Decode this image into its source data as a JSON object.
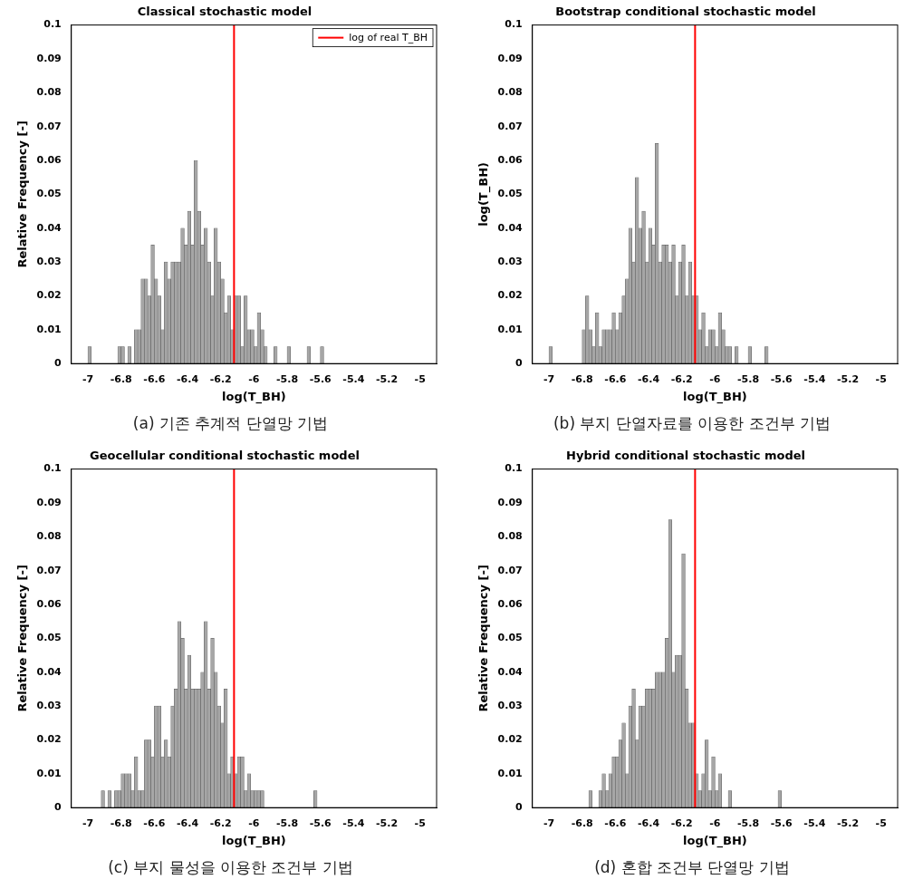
{
  "chart_data": [
    {
      "type": "histogram",
      "title": "Classical stochastic model",
      "caption": "(a) 기존 추계적 단열망 기법",
      "x_label": "log(T_BH)",
      "y_label": "Relative Frequency [-]",
      "bins": [
        -7,
        -6.98,
        -6.96,
        -6.94,
        -6.92,
        -6.9,
        -6.88,
        -6.86,
        -6.84,
        -6.82,
        -6.8,
        -6.78,
        -6.76,
        -6.74,
        -6.72,
        -6.7,
        -6.68,
        -6.66,
        -6.64,
        -6.62,
        -6.6,
        -6.58,
        -6.56,
        -6.54,
        -6.52,
        -6.5,
        -6.48,
        -6.46,
        -6.44,
        -6.42,
        -6.4,
        -6.38,
        -6.36,
        -6.34,
        -6.32,
        -6.3,
        -6.28,
        -6.26,
        -6.24,
        -6.22,
        -6.2,
        -6.18,
        -6.16,
        -6.14,
        -6.12,
        -6.1,
        -6.08,
        -6.06,
        -6.04,
        -6.02,
        -6,
        -5.98,
        -5.96,
        -5.94,
        -5.92,
        -5.9,
        -5.88,
        -5.86,
        -5.84,
        -5.82,
        -5.8,
        -5.78,
        -5.76,
        -5.74,
        -5.72,
        -5.7,
        -5.68,
        -5.66,
        -5.64,
        -5.62,
        -5.6,
        -5.58,
        -5.56,
        -5.54,
        -5.52,
        -5.5,
        -5.48,
        -5.46,
        -5.44,
        -5.42,
        -5.4,
        -5.38,
        -5.36,
        -5.34,
        -5.32,
        -5.3,
        -5.28,
        -5.26,
        -5.24,
        -5.22,
        -5.2,
        -5.18,
        -5.16,
        -5.14,
        -5.12,
        -5.1,
        -5.08,
        -5.06,
        -5.04,
        -5.02,
        -5
      ],
      "values": [
        0.005,
        0,
        0,
        0,
        0,
        0,
        0,
        0,
        0,
        0.005,
        0.005,
        0,
        0.005,
        0,
        0.01,
        0.01,
        0.025,
        0.025,
        0.02,
        0.035,
        0.025,
        0.02,
        0.01,
        0.03,
        0.025,
        0.03,
        0.03,
        0.03,
        0.04,
        0.035,
        0.045,
        0.035,
        0.06,
        0.045,
        0.035,
        0.04,
        0.03,
        0.02,
        0.04,
        0.03,
        0.025,
        0.015,
        0.02,
        0.01,
        0.02,
        0.02,
        0.005,
        0.02,
        0.01,
        0.01,
        0.005,
        0.015,
        0.01,
        0.005,
        0,
        0,
        0.005,
        0,
        0,
        0,
        0.005,
        0,
        0,
        0,
        0,
        0,
        0.005,
        0,
        0,
        0,
        0.005,
        0,
        0,
        0,
        0,
        0,
        0,
        0,
        0,
        0,
        0,
        0,
        0,
        0,
        0,
        0,
        0,
        0,
        0,
        0,
        0,
        0,
        0,
        0,
        0,
        0,
        0,
        0,
        0,
        0
      ],
      "color": "#a6a6a6",
      "xlim": [
        -7,
        -5
      ],
      "xticks": [
        -7,
        -6.8,
        -6.6,
        -6.4,
        -6.2,
        -6,
        -5.8,
        -5.6,
        -5.4,
        -5.2,
        -5
      ],
      "ylim": [
        0,
        0.1
      ],
      "yticks": [
        0,
        0.01,
        0.02,
        0.03,
        0.04,
        0.05,
        0.06,
        0.07,
        0.08,
        0.09,
        0.1
      ],
      "grid": false,
      "legend": "upper right",
      "reference_line": {
        "name": "log of real T_BH",
        "x": -6.12,
        "color": "#ff0000"
      }
    },
    {
      "type": "histogram",
      "title": "Bootstrap conditional stochastic model",
      "caption": "(b) 부지 단열자료를 이용한 조건부 기법",
      "x_label": "log(T_BH)",
      "y_label": "log(T_BH)",
      "bins": [
        -7,
        -6.98,
        -6.96,
        -6.94,
        -6.92,
        -6.9,
        -6.88,
        -6.86,
        -6.84,
        -6.82,
        -6.8,
        -6.78,
        -6.76,
        -6.74,
        -6.72,
        -6.7,
        -6.68,
        -6.66,
        -6.64,
        -6.62,
        -6.6,
        -6.58,
        -6.56,
        -6.54,
        -6.52,
        -6.5,
        -6.48,
        -6.46,
        -6.44,
        -6.42,
        -6.4,
        -6.38,
        -6.36,
        -6.34,
        -6.32,
        -6.3,
        -6.28,
        -6.26,
        -6.24,
        -6.22,
        -6.2,
        -6.18,
        -6.16,
        -6.14,
        -6.12,
        -6.1,
        -6.08,
        -6.06,
        -6.04,
        -6.02,
        -6,
        -5.98,
        -5.96,
        -5.94,
        -5.92,
        -5.9,
        -5.88,
        -5.86,
        -5.84,
        -5.82,
        -5.8,
        -5.78,
        -5.76,
        -5.74,
        -5.72,
        -5.7,
        -5.68,
        -5.66,
        -5.64,
        -5.62,
        -5.6,
        -5.58,
        -5.56,
        -5.54,
        -5.52,
        -5.5,
        -5.48,
        -5.46,
        -5.44,
        -5.42,
        -5.4,
        -5.38,
        -5.36,
        -5.34,
        -5.32,
        -5.3,
        -5.28,
        -5.26,
        -5.24,
        -5.22,
        -5.2,
        -5.18,
        -5.16,
        -5.14,
        -5.12,
        -5.1,
        -5.08,
        -5.06,
        -5.04,
        -5.02,
        -5
      ],
      "values": [
        0.005,
        0,
        0,
        0,
        0,
        0,
        0,
        0,
        0,
        0,
        0.01,
        0.02,
        0.01,
        0.005,
        0.015,
        0.005,
        0.01,
        0.01,
        0.01,
        0.015,
        0.01,
        0.015,
        0.02,
        0.025,
        0.04,
        0.03,
        0.055,
        0.04,
        0.045,
        0.03,
        0.04,
        0.035,
        0.065,
        0.03,
        0.035,
        0.035,
        0.03,
        0.035,
        0.02,
        0.03,
        0.035,
        0.02,
        0.03,
        0.02,
        0.02,
        0.01,
        0.015,
        0.005,
        0.01,
        0.01,
        0.005,
        0.015,
        0.01,
        0.005,
        0.005,
        0,
        0.005,
        0,
        0,
        0,
        0.005,
        0,
        0,
        0,
        0,
        0.005,
        0,
        0,
        0,
        0,
        0,
        0,
        0,
        0,
        0,
        0,
        0,
        0,
        0,
        0,
        0,
        0,
        0,
        0,
        0,
        0,
        0,
        0,
        0,
        0,
        0,
        0,
        0,
        0,
        0,
        0,
        0,
        0,
        0,
        0
      ],
      "color": "#a6a6a6",
      "xlim": [
        -7,
        -5
      ],
      "xticks": [
        -7,
        -6.8,
        -6.6,
        -6.4,
        -6.2,
        -6,
        -5.8,
        -5.6,
        -5.4,
        -5.2,
        -5
      ],
      "ylim": [
        0,
        0.1
      ],
      "yticks": [
        0,
        0.01,
        0.02,
        0.03,
        0.04,
        0.05,
        0.06,
        0.07,
        0.08,
        0.09,
        0.1
      ],
      "grid": false,
      "legend": false,
      "reference_line": {
        "name": "log of real T_BH",
        "x": -6.12,
        "color": "#ff0000"
      }
    },
    {
      "type": "histogram",
      "title": "Geocellular conditional stochastic model",
      "caption": "(c) 부지 물성을 이용한 조건부 기법",
      "x_label": "log(T_BH)",
      "y_label": "Relative Frequency [-]",
      "bins": [
        -7,
        -6.98,
        -6.96,
        -6.94,
        -6.92,
        -6.9,
        -6.88,
        -6.86,
        -6.84,
        -6.82,
        -6.8,
        -6.78,
        -6.76,
        -6.74,
        -6.72,
        -6.7,
        -6.68,
        -6.66,
        -6.64,
        -6.62,
        -6.6,
        -6.58,
        -6.56,
        -6.54,
        -6.52,
        -6.5,
        -6.48,
        -6.46,
        -6.44,
        -6.42,
        -6.4,
        -6.38,
        -6.36,
        -6.34,
        -6.32,
        -6.3,
        -6.28,
        -6.26,
        -6.24,
        -6.22,
        -6.2,
        -6.18,
        -6.16,
        -6.14,
        -6.12,
        -6.1,
        -6.08,
        -6.06,
        -6.04,
        -6.02,
        -6,
        -5.98,
        -5.96,
        -5.94,
        -5.92,
        -5.9,
        -5.88,
        -5.86,
        -5.84,
        -5.82,
        -5.8,
        -5.78,
        -5.76,
        -5.74,
        -5.72,
        -5.7,
        -5.68,
        -5.66,
        -5.64,
        -5.62,
        -5.6,
        -5.58,
        -5.56,
        -5.54,
        -5.52,
        -5.5,
        -5.48,
        -5.46,
        -5.44,
        -5.42,
        -5.4,
        -5.38,
        -5.36,
        -5.34,
        -5.32,
        -5.3,
        -5.28,
        -5.26,
        -5.24,
        -5.22,
        -5.2,
        -5.18,
        -5.16,
        -5.14,
        -5.12,
        -5.1,
        -5.08,
        -5.06,
        -5.04,
        -5.02,
        -5
      ],
      "values": [
        0,
        0,
        0,
        0,
        0.005,
        0,
        0.005,
        0,
        0.005,
        0.005,
        0.01,
        0.01,
        0.01,
        0.005,
        0.015,
        0.005,
        0.005,
        0.02,
        0.02,
        0.015,
        0.03,
        0.03,
        0.015,
        0.02,
        0.015,
        0.03,
        0.035,
        0.055,
        0.05,
        0.035,
        0.045,
        0.035,
        0.035,
        0.035,
        0.04,
        0.055,
        0.035,
        0.05,
        0.04,
        0.03,
        0.025,
        0.035,
        0.01,
        0.015,
        0.01,
        0.015,
        0.015,
        0.005,
        0.01,
        0.005,
        0.005,
        0.005,
        0.005,
        0,
        0,
        0,
        0,
        0,
        0,
        0,
        0,
        0,
        0,
        0,
        0,
        0,
        0,
        0,
        0.005,
        0,
        0,
        0,
        0,
        0,
        0,
        0,
        0,
        0,
        0,
        0,
        0,
        0,
        0,
        0,
        0,
        0,
        0,
        0,
        0,
        0,
        0,
        0,
        0,
        0,
        0,
        0,
        0,
        0,
        0,
        0
      ],
      "color": "#a6a6a6",
      "xlim": [
        -7,
        -5
      ],
      "xticks": [
        -7,
        -6.8,
        -6.6,
        -6.4,
        -6.2,
        -6,
        -5.8,
        -5.6,
        -5.4,
        -5.2,
        -5
      ],
      "ylim": [
        0,
        0.1
      ],
      "yticks": [
        0,
        0.01,
        0.02,
        0.03,
        0.04,
        0.05,
        0.06,
        0.07,
        0.08,
        0.09,
        0.1
      ],
      "grid": false,
      "legend": false,
      "reference_line": {
        "name": "log of real T_BH",
        "x": -6.12,
        "color": "#ff0000"
      }
    },
    {
      "type": "histogram",
      "title": "Hybrid conditional stochastic model",
      "caption": "(d) 혼합 조건부 단열망 기법",
      "x_label": "log(T_BH)",
      "y_label": "Relative Frequency [-]",
      "bins": [
        -7,
        -6.98,
        -6.96,
        -6.94,
        -6.92,
        -6.9,
        -6.88,
        -6.86,
        -6.84,
        -6.82,
        -6.8,
        -6.78,
        -6.76,
        -6.74,
        -6.72,
        -6.7,
        -6.68,
        -6.66,
        -6.64,
        -6.62,
        -6.6,
        -6.58,
        -6.56,
        -6.54,
        -6.52,
        -6.5,
        -6.48,
        -6.46,
        -6.44,
        -6.42,
        -6.4,
        -6.38,
        -6.36,
        -6.34,
        -6.32,
        -6.3,
        -6.28,
        -6.26,
        -6.24,
        -6.22,
        -6.2,
        -6.18,
        -6.16,
        -6.14,
        -6.12,
        -6.1,
        -6.08,
        -6.06,
        -6.04,
        -6.02,
        -6,
        -5.98,
        -5.96,
        -5.94,
        -5.92,
        -5.9,
        -5.88,
        -5.86,
        -5.84,
        -5.82,
        -5.8,
        -5.78,
        -5.76,
        -5.74,
        -5.72,
        -5.7,
        -5.68,
        -5.66,
        -5.64,
        -5.62,
        -5.6,
        -5.58,
        -5.56,
        -5.54,
        -5.52,
        -5.5,
        -5.48,
        -5.46,
        -5.44,
        -5.42,
        -5.4,
        -5.38,
        -5.36,
        -5.34,
        -5.32,
        -5.3,
        -5.28,
        -5.26,
        -5.24,
        -5.22,
        -5.2,
        -5.18,
        -5.16,
        -5.14,
        -5.12,
        -5.1,
        -5.08,
        -5.06,
        -5.04,
        -5.02,
        -5
      ],
      "values": [
        0,
        0,
        0,
        0,
        0,
        0,
        0,
        0,
        0,
        0,
        0,
        0,
        0.005,
        0,
        0,
        0.005,
        0.01,
        0.005,
        0.01,
        0.015,
        0.015,
        0.02,
        0.025,
        0.01,
        0.03,
        0.035,
        0.02,
        0.03,
        0.03,
        0.035,
        0.035,
        0.035,
        0.04,
        0.04,
        0.04,
        0.05,
        0.085,
        0.04,
        0.045,
        0.045,
        0.075,
        0.035,
        0.025,
        0.025,
        0.01,
        0.005,
        0.01,
        0.02,
        0.005,
        0.015,
        0.005,
        0.01,
        0,
        0,
        0.005,
        0,
        0,
        0,
        0,
        0,
        0,
        0,
        0,
        0,
        0,
        0,
        0,
        0,
        0,
        0.005,
        0,
        0,
        0,
        0,
        0,
        0,
        0,
        0,
        0,
        0,
        0,
        0,
        0,
        0,
        0,
        0,
        0,
        0,
        0,
        0,
        0,
        0,
        0,
        0,
        0,
        0,
        0,
        0,
        0,
        0
      ],
      "color": "#a6a6a6",
      "xlim": [
        -7,
        -5
      ],
      "xticks": [
        -7,
        -6.8,
        -6.6,
        -6.4,
        -6.2,
        -6,
        -5.8,
        -5.6,
        -5.4,
        -5.2,
        -5
      ],
      "ylim": [
        0,
        0.1
      ],
      "yticks": [
        0,
        0.01,
        0.02,
        0.03,
        0.04,
        0.05,
        0.06,
        0.07,
        0.08,
        0.09,
        0.1
      ],
      "grid": false,
      "legend": false,
      "reference_line": {
        "name": "log of real T_BH",
        "x": -6.12,
        "color": "#ff0000"
      }
    }
  ]
}
